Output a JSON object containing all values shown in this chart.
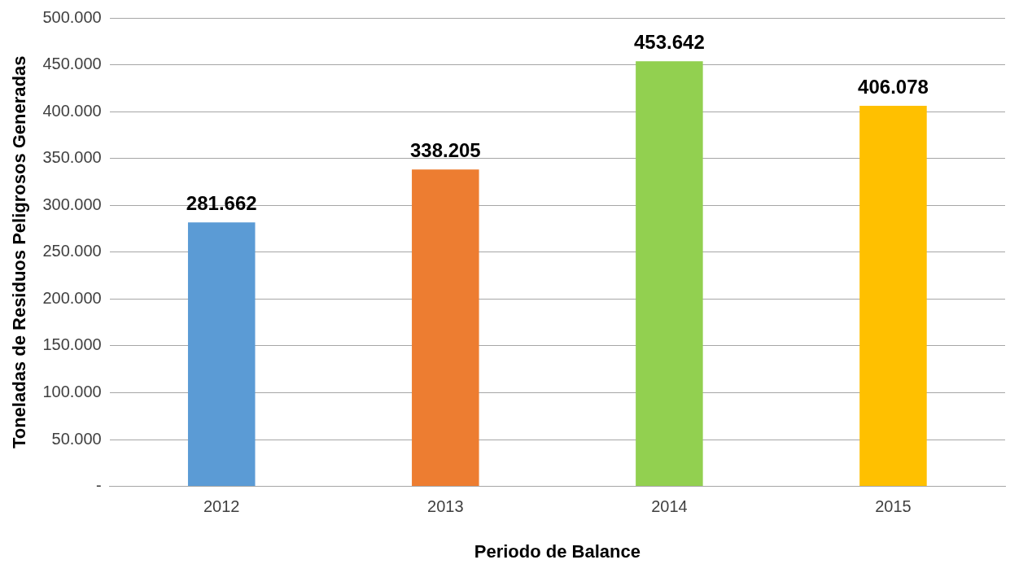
{
  "chart_data": {
    "type": "bar",
    "xlabel": "Periodo de Balance",
    "ylabel": "Toneladas de Residuos Peligrosos Generadas",
    "categories": [
      "2012",
      "2013",
      "2014",
      "2015"
    ],
    "values": [
      281662,
      338205,
      453642,
      406078
    ],
    "colors": [
      "#5b9bd5",
      "#ed7d31",
      "#92d050",
      "#ffc000"
    ],
    "value_labels": [
      "281.662",
      "338.205",
      "453.642",
      "406.078"
    ],
    "ylim": [
      0,
      500000
    ],
    "yticks": [
      {
        "value": 0,
        "label": "-"
      },
      {
        "value": 50000,
        "label": "50.000"
      },
      {
        "value": 100000,
        "label": "100.000"
      },
      {
        "value": 150000,
        "label": "150.000"
      },
      {
        "value": 200000,
        "label": "200.000"
      },
      {
        "value": 250000,
        "label": "250.000"
      },
      {
        "value": 300000,
        "label": "300.000"
      },
      {
        "value": 350000,
        "label": "350.000"
      },
      {
        "value": 400000,
        "label": "400.000"
      },
      {
        "value": 450000,
        "label": "450.000"
      },
      {
        "value": 500000,
        "label": "500.000"
      }
    ],
    "grid": "y"
  }
}
